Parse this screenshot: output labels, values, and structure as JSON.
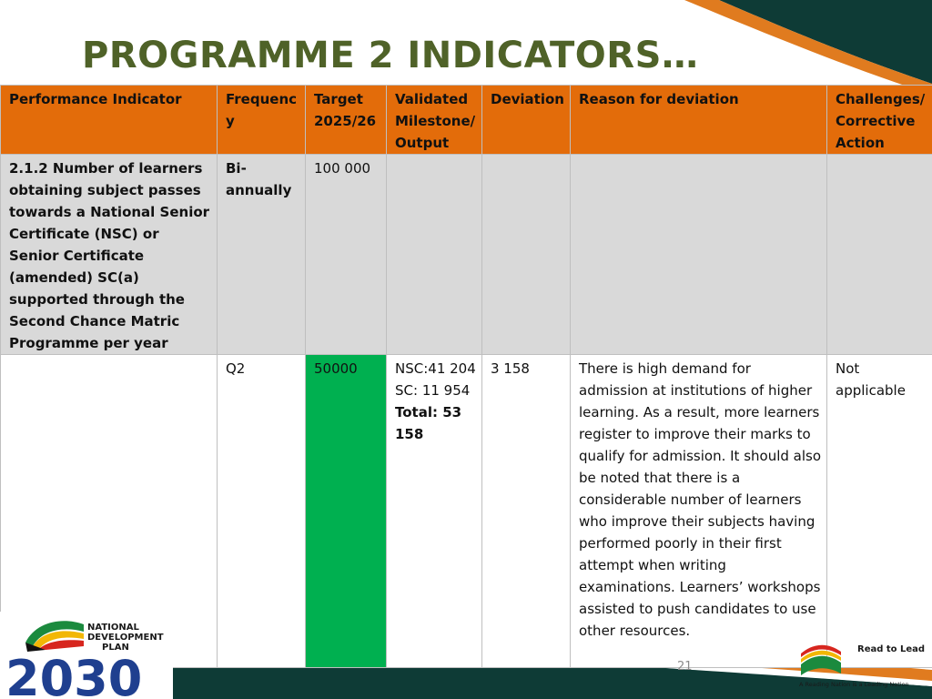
{
  "slide": {
    "title": "PROGRAMME 2 INDICATORS…",
    "page_number": "21"
  },
  "table": {
    "headers": [
      "Performance Indicator",
      "Frequency",
      "Target 2025/26",
      "Validated Milestone/ Output",
      "Deviation",
      "Reason for deviation",
      "Challenges/ Corrective Action"
    ],
    "indicator_row": {
      "indicator": "2.1.2 Number of learners obtaining subject passes towards a National Senior Certificate (NSC) or Senior Certificate (amended) SC(a) supported through the Second Chance Matric Programme per year",
      "frequency": "Bi-annually",
      "target": "100 000"
    },
    "q2_row": {
      "period": "Q2",
      "target": "50000",
      "milestone_nsc": "NSC:41 204",
      "milestone_sc": "SC: 11 954",
      "milestone_total": "Total: 53 158",
      "deviation": "3 158",
      "reason": "There is high demand for admission at institutions of higher learning. As a result, more learners register to improve their marks to qualify for admission. It should also be noted that there is a considerable number of learners who improve their subjects having performed poorly in their first attempt when writing examinations. Learners’ workshops assisted to push candidates to use other resources.",
      "challenges": "Not applicable"
    }
  },
  "logos": {
    "ndp_line1": "NATIONAL",
    "ndp_line2": "DEVELOPMENT",
    "ndp_line3": "PLAN",
    "ndp_year": "2030",
    "read_to_lead": "Read to Lead",
    "read_to_lead_tagline": "A Reading Nation is a Leading Nation"
  },
  "colors": {
    "title": "#4f6228",
    "header_bg": "#e36c0a",
    "indicator_row_bg": "#d9d9d9",
    "target_highlight": "#00b050",
    "dark_teal": "#0e3b36",
    "orange_accent": "#e07b1f"
  }
}
